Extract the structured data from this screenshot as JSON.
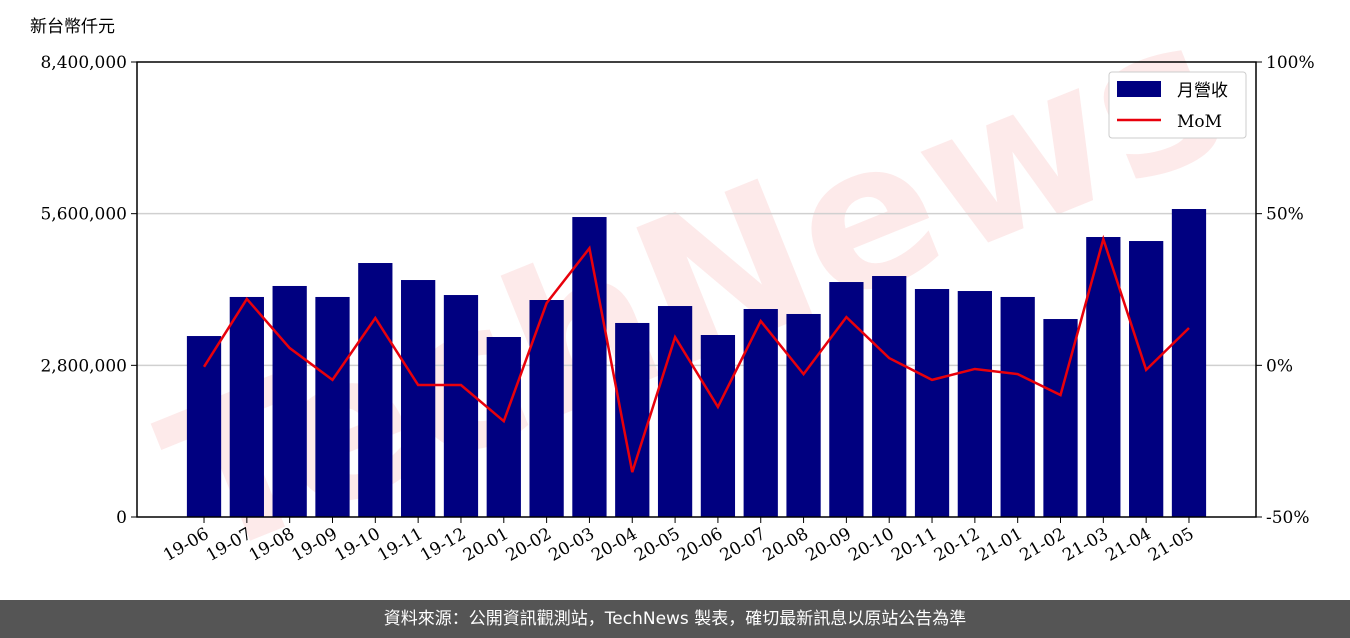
{
  "chart_data": {
    "type": "bar_line",
    "y_axis_label": "新台幣仟元",
    "watermark": "TechNews",
    "categories": [
      "19-06",
      "19-07",
      "19-08",
      "19-09",
      "19-10",
      "19-11",
      "19-12",
      "20-01",
      "20-02",
      "20-03",
      "20-04",
      "20-05",
      "20-06",
      "20-07",
      "20-08",
      "20-09",
      "20-10",
      "20-11",
      "20-12",
      "21-01",
      "21-02",
      "21-03",
      "21-04",
      "21-05"
    ],
    "series": [
      {
        "name": "月營收",
        "color": "#000080",
        "type": "bar",
        "values": [
          3341000,
          4062000,
          4265000,
          4062000,
          4689000,
          4375000,
          4098000,
          3323000,
          4006000,
          5538000,
          3582000,
          3895000,
          3360000,
          3840000,
          3748000,
          4338000,
          4449000,
          4209000,
          4172000,
          4062000,
          3655000,
          5169000,
          5095000,
          5686000
        ]
      },
      {
        "name": "MoM",
        "color": "#e8000b",
        "type": "line",
        "axis": "y2",
        "values": [
          -0.5,
          21.9,
          5.7,
          -4.8,
          15.6,
          -6.5,
          -6.5,
          -18.4,
          20.5,
          38.6,
          -35.2,
          9.3,
          -13.7,
          14.6,
          -2.9,
          15.9,
          2.4,
          -4.8,
          -1.2,
          -2.9,
          -9.8,
          41.6,
          -1.5,
          12.3
        ]
      }
    ],
    "ylim": [
      0,
      8400000
    ],
    "yticks": [
      0,
      {
        "value": 2800000,
        "label": "2,800,000"
      },
      {
        "value": 5600000,
        "label": "5,600,000"
      },
      {
        "value": 8400000,
        "label": "8,400,000"
      }
    ],
    "y2lim": [
      -50,
      100
    ],
    "y2ticks": [
      {
        "value": -50,
        "label": "-50%"
      },
      {
        "value": 0,
        "label": "0%"
      },
      {
        "value": 50,
        "label": "50%"
      },
      {
        "value": 100,
        "label": "100%"
      }
    ],
    "grid": true,
    "legend": "upper right",
    "footer": "資料來源：公開資訊觀測站，TechNews 製表，確切最新訊息以原站公告為準"
  }
}
